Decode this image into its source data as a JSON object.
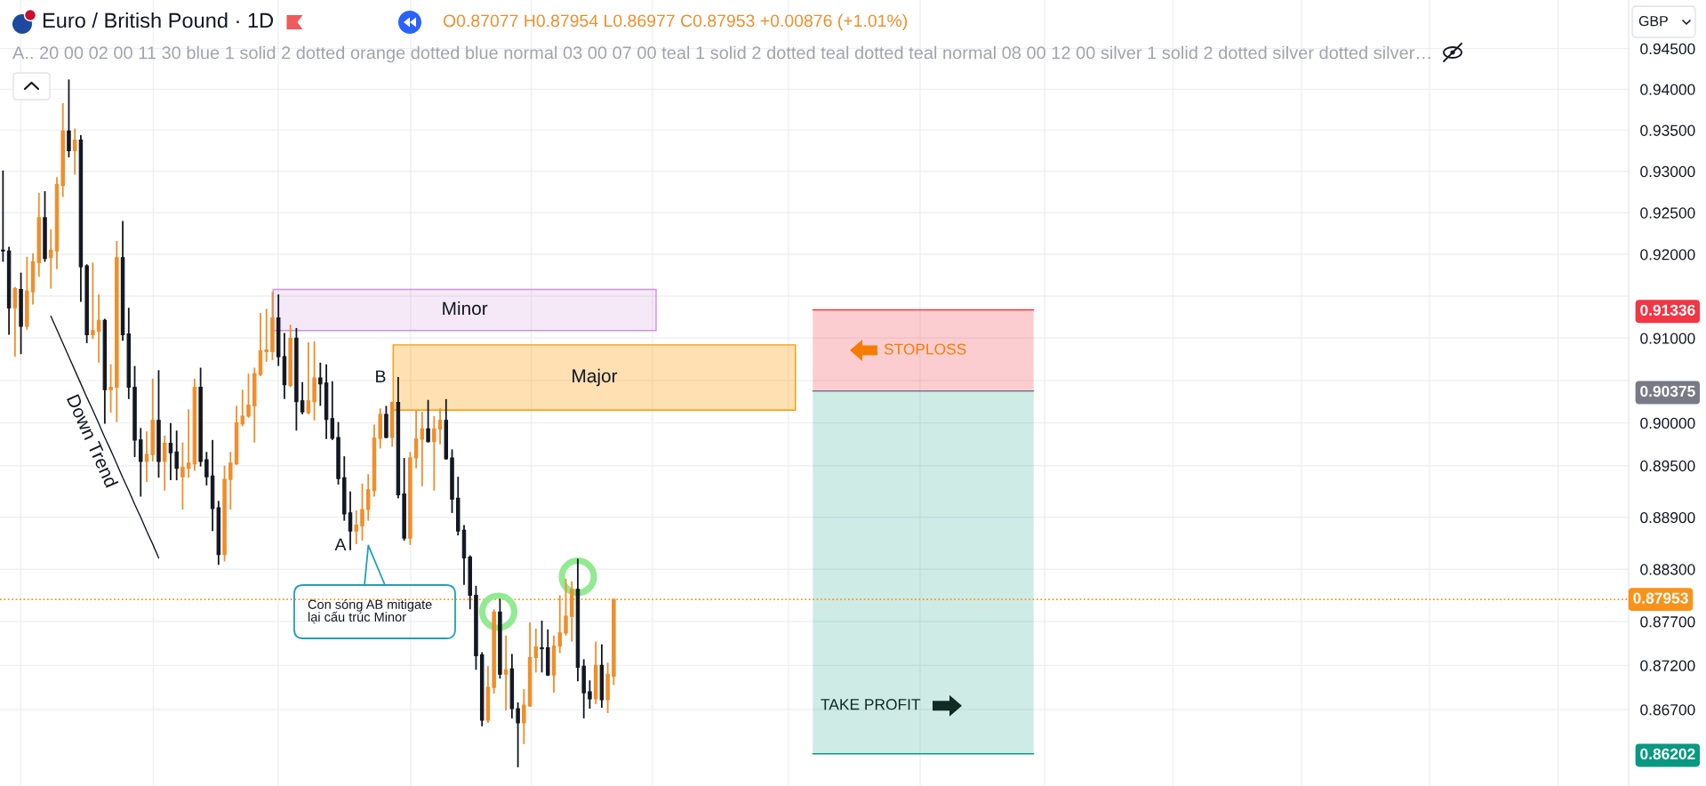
{
  "chart_data": {
    "type": "candlestick",
    "title": "Euro / British Pound · 1D",
    "subtitle": "A.. 20 00 02 00 11 30 blue 1 solid 2 dotted orange dotted blue normal 03 00 07 00 teal 1 solid 2 dotted teal dotted teal normal 08 00 12 00 silver 1 solid 2 dotted silver dotted silver…",
    "categories": [
      null,
      null,
      null,
      null,
      null,
      null,
      null,
      null,
      null,
      null,
      null,
      null,
      null,
      null,
      null,
      null,
      null,
      null,
      null,
      null,
      null,
      null,
      null,
      null,
      null,
      null,
      null,
      null,
      null,
      null,
      null,
      null,
      null,
      null,
      null,
      null,
      null,
      null,
      null,
      null,
      null,
      null,
      null,
      null,
      null,
      null,
      null,
      null,
      null,
      null,
      null,
      null,
      null,
      null,
      null,
      null,
      null,
      null,
      null,
      null,
      null,
      null,
      null,
      null,
      null,
      null,
      null,
      null,
      null,
      null,
      null,
      null,
      null,
      null,
      null,
      null,
      null,
      null,
      null,
      null,
      null,
      null,
      null,
      null,
      null,
      null,
      null,
      null,
      null,
      null,
      null,
      null,
      null,
      null,
      null,
      null,
      null,
      null,
      null,
      null,
      null,
      null,
      null,
      null,
      null,
      null,
      null,
      null,
      null,
      null,
      null,
      null,
      null,
      null,
      null,
      null,
      null,
      null,
      null,
      null,
      null,
      null,
      null,
      null,
      null,
      null,
      null,
      null,
      null,
      null,
      null,
      null,
      null,
      null,
      null,
      null,
      null,
      null,
      null,
      null,
      null,
      null,
      null,
      null,
      null,
      null,
      null,
      null,
      null,
      null,
      null,
      null,
      null,
      null,
      null,
      null,
      null,
      null,
      null,
      null,
      null,
      null,
      null,
      null,
      null,
      null,
      null,
      null,
      null,
      null,
      null,
      null,
      null,
      null,
      null,
      null,
      null,
      null,
      null,
      null,
      null,
      null,
      null,
      null,
      null,
      null,
      null,
      null,
      null,
      null,
      null,
      null,
      null,
      null,
      null,
      null,
      null,
      null,
      null,
      null,
      null,
      null,
      null,
      null,
      null,
      null,
      null,
      null,
      null,
      null,
      null,
      null,
      null,
      null,
      null,
      null,
      null,
      null,
      null,
      null,
      null,
      null,
      null,
      null,
      null,
      null,
      null,
      null,
      null,
      null,
      null,
      null,
      null,
      null,
      null,
      null,
      null,
      null,
      null,
      null,
      null,
      null,
      null,
      null,
      null,
      null,
      null,
      null,
      null,
      null,
      null,
      null,
      null,
      null,
      null,
      null,
      null,
      null,
      null,
      null,
      null,
      null,
      null,
      null,
      null,
      null,
      null,
      null,
      null,
      null,
      null,
      null
    ],
    "ohlc": [
      [
        0.9205,
        0.9301,
        0.9191,
        0.9204
      ],
      [
        0.9204,
        0.9209,
        0.9104,
        0.9136
      ],
      [
        0.9136,
        0.9161,
        0.9078,
        0.9159
      ],
      [
        0.9158,
        0.9178,
        0.9081,
        0.9114
      ],
      [
        0.9114,
        0.9197,
        0.911,
        0.9156
      ],
      [
        0.9155,
        0.9201,
        0.914,
        0.9191
      ],
      [
        0.919,
        0.9274,
        0.9173,
        0.9244
      ],
      [
        0.9244,
        0.9276,
        0.9191,
        0.9195
      ],
      [
        0.9196,
        0.923,
        0.9159,
        0.9205
      ],
      [
        0.9204,
        0.9293,
        0.9182,
        0.9284
      ],
      [
        0.9283,
        0.9383,
        0.9269,
        0.9349
      ],
      [
        0.9349,
        0.9412,
        0.9317,
        0.9325
      ],
      [
        0.9325,
        0.9352,
        0.9296,
        0.9338
      ],
      [
        0.9338,
        0.9344,
        0.9143,
        0.9185
      ],
      [
        0.9186,
        0.9188,
        0.9094,
        0.9104
      ],
      [
        0.9104,
        0.919,
        0.9099,
        0.9109
      ],
      [
        0.9108,
        0.9152,
        0.9071,
        0.9121
      ],
      [
        0.9121,
        0.9123,
        0.8999,
        0.9039
      ],
      [
        0.9039,
        0.9069,
        0.9012,
        0.9042
      ],
      [
        0.9042,
        0.9216,
        0.9001,
        0.9196
      ],
      [
        0.9196,
        0.924,
        0.9097,
        0.9104
      ],
      [
        0.9105,
        0.9136,
        0.9028,
        0.9042
      ],
      [
        0.9042,
        0.9067,
        0.896,
        0.898
      ],
      [
        0.898,
        0.8994,
        0.8914,
        0.8955
      ],
      [
        0.8955,
        0.899,
        0.8931,
        0.8963
      ],
      [
        0.8963,
        0.9052,
        0.8955,
        0.9003
      ],
      [
        0.9003,
        0.9062,
        0.8936,
        0.8955
      ],
      [
        0.8955,
        0.8985,
        0.8921,
        0.8976
      ],
      [
        0.8976,
        0.9,
        0.8933,
        0.8965
      ],
      [
        0.8966,
        0.8991,
        0.8933,
        0.8947
      ],
      [
        0.8937,
        0.8977,
        0.8899,
        0.8948
      ],
      [
        0.8947,
        0.9016,
        0.8936,
        0.8953
      ],
      [
        0.8952,
        0.9052,
        0.8944,
        0.9042
      ],
      [
        0.9042,
        0.9065,
        0.8949,
        0.8955
      ],
      [
        0.8957,
        0.8966,
        0.8927,
        0.8937
      ],
      [
        0.8938,
        0.898,
        0.8874,
        0.89
      ],
      [
        0.8901,
        0.8909,
        0.8835,
        0.8847
      ],
      [
        0.8847,
        0.895,
        0.8839,
        0.8934
      ],
      [
        0.8934,
        0.8966,
        0.8899,
        0.8953
      ],
      [
        0.8952,
        0.902,
        0.8951,
        0.9
      ],
      [
        0.8999,
        0.9039,
        0.8996,
        0.9008
      ],
      [
        0.9008,
        0.9058,
        0.9006,
        0.9021
      ],
      [
        0.902,
        0.9065,
        0.8977,
        0.9058
      ],
      [
        0.9057,
        0.913,
        0.9055,
        0.9085
      ],
      [
        0.9084,
        0.9135,
        0.9072,
        0.9086
      ],
      [
        0.9084,
        0.9155,
        0.9074,
        0.9124
      ],
      [
        0.9124,
        0.9152,
        0.9067,
        0.9078
      ],
      [
        0.9078,
        0.9106,
        0.9028,
        0.9045
      ],
      [
        0.9044,
        0.9116,
        0.9042,
        0.91
      ],
      [
        0.91,
        0.9112,
        0.8991,
        0.9025
      ],
      [
        0.9026,
        0.9048,
        0.901,
        0.9013
      ],
      [
        0.9012,
        0.9095,
        0.901,
        0.9026
      ],
      [
        0.9025,
        0.9096,
        0.9003,
        0.9053
      ],
      [
        0.9053,
        0.9071,
        0.902,
        0.9046
      ],
      [
        0.9047,
        0.9069,
        0.8981,
        0.9004
      ],
      [
        0.9005,
        0.9049,
        0.898,
        0.8982
      ],
      [
        0.8983,
        0.9001,
        0.8928,
        0.8935
      ],
      [
        0.8936,
        0.8961,
        0.8886,
        0.8894
      ],
      [
        0.8895,
        0.892,
        0.8852,
        0.8874
      ],
      [
        0.8874,
        0.8898,
        0.8859,
        0.8881
      ],
      [
        0.888,
        0.8929,
        0.8863,
        0.8899
      ],
      [
        0.8899,
        0.894,
        0.8886,
        0.8922
      ],
      [
        0.8921,
        0.8998,
        0.8914,
        0.8982
      ],
      [
        0.8982,
        0.9017,
        0.897,
        0.901
      ],
      [
        0.901,
        0.902,
        0.8982,
        0.8983
      ],
      [
        0.8983,
        0.9025,
        0.8972,
        0.9024
      ],
      [
        0.9024,
        0.9054,
        0.8912,
        0.8916
      ],
      [
        0.8917,
        0.8959,
        0.8863,
        0.8866
      ],
      [
        0.8866,
        0.8966,
        0.8858,
        0.8959
      ],
      [
        0.8959,
        0.9015,
        0.8947,
        0.8981
      ],
      [
        0.8981,
        0.9013,
        0.8926,
        0.8993
      ],
      [
        0.8993,
        0.9027,
        0.8977,
        0.8978
      ],
      [
        0.8978,
        0.9008,
        0.8921,
        0.8993
      ],
      [
        0.8993,
        0.9017,
        0.8975,
        0.9003
      ],
      [
        0.9003,
        0.9028,
        0.8957,
        0.8958
      ],
      [
        0.8959,
        0.8969,
        0.8895,
        0.8911
      ],
      [
        0.8912,
        0.8937,
        0.8869,
        0.8874
      ],
      [
        0.8875,
        0.8881,
        0.8812,
        0.8843
      ],
      [
        0.8844,
        0.8846,
        0.8784,
        0.88
      ],
      [
        0.88,
        0.8811,
        0.8715,
        0.8731
      ],
      [
        0.8732,
        0.8735,
        0.8651,
        0.8658
      ],
      [
        0.8658,
        0.8719,
        0.8655,
        0.8695
      ],
      [
        0.8695,
        0.8784,
        0.8688,
        0.8781
      ],
      [
        0.8781,
        0.8796,
        0.8705,
        0.871
      ],
      [
        0.871,
        0.8754,
        0.8669,
        0.8715
      ],
      [
        0.8716,
        0.8733,
        0.866,
        0.8671
      ],
      [
        0.8671,
        0.8678,
        0.8605,
        0.8655
      ],
      [
        0.8655,
        0.8693,
        0.8631,
        0.8675
      ],
      [
        0.8674,
        0.8769,
        0.8673,
        0.8729
      ],
      [
        0.8729,
        0.8762,
        0.8712,
        0.8741
      ],
      [
        0.874,
        0.8771,
        0.8712,
        0.8739
      ],
      [
        0.874,
        0.8761,
        0.8708,
        0.8709
      ],
      [
        0.8709,
        0.8754,
        0.8689,
        0.8742
      ],
      [
        0.8742,
        0.88,
        0.8734,
        0.8757
      ],
      [
        0.8757,
        0.8819,
        0.8754,
        0.8776
      ],
      [
        0.8776,
        0.8816,
        0.8747,
        0.8807
      ],
      [
        0.8807,
        0.8842,
        0.8702,
        0.8718
      ],
      [
        0.8719,
        0.8727,
        0.866,
        0.8689
      ],
      [
        0.869,
        0.8703,
        0.8671,
        0.8682
      ],
      [
        0.8682,
        0.8747,
        0.8676,
        0.872
      ],
      [
        0.872,
        0.8744,
        0.8672,
        0.8681
      ],
      [
        0.8681,
        0.8723,
        0.8666,
        0.871
      ],
      [
        0.87077,
        0.87954,
        0.86977,
        0.87953
      ],
      null,
      null,
      null,
      null,
      null,
      null,
      null,
      null,
      null,
      null,
      null,
      null,
      null,
      null,
      null,
      null,
      null,
      null,
      null,
      null,
      null,
      null,
      null,
      null,
      null,
      null,
      null,
      null,
      null,
      null,
      null,
      null,
      null,
      null,
      null,
      null,
      null,
      null,
      null,
      null,
      null,
      null,
      null,
      null,
      null,
      null,
      null,
      null,
      null,
      null,
      null,
      null,
      null,
      null,
      null,
      null,
      null,
      null,
      null,
      null,
      null,
      null,
      null,
      null,
      null,
      null,
      null,
      null,
      null,
      null,
      null,
      null,
      null,
      null,
      null,
      null,
      null,
      null,
      null,
      null,
      null,
      null,
      null,
      null,
      null,
      null,
      null,
      null,
      null,
      null,
      null,
      null,
      null,
      null,
      null,
      null,
      null,
      null,
      null,
      null,
      null,
      null,
      null,
      null,
      null,
      null,
      null,
      null,
      null,
      null,
      null,
      null,
      null,
      null,
      null,
      null,
      null,
      null,
      null,
      null,
      null,
      null,
      null,
      null,
      null,
      null,
      null,
      null,
      null,
      null,
      null,
      null,
      null,
      null,
      null,
      null,
      null,
      null,
      null,
      null,
      null,
      null,
      null,
      null,
      null,
      null,
      null,
      null,
      null,
      null,
      null,
      null,
      null,
      null,
      null,
      null,
      null,
      null,
      null,
      null,
      null,
      null,
      null,
      null,
      null,
      null,
      null,
      null,
      null
    ],
    "colors": [
      "#131722",
      "#131722",
      "#ef8e2c",
      "#131722",
      "#ef8e2c",
      "#ef8e2c",
      "#ef8e2c",
      "#131722",
      "#ef8e2c",
      "#ef8e2c",
      "#ef8e2c",
      "#131722",
      "#ef8e2c",
      "#131722",
      "#131722",
      "#ef8e2c",
      "#ef8e2c",
      "#131722",
      "#ef8e2c",
      "#ef8e2c",
      "#131722",
      "#131722",
      "#131722",
      "#131722",
      "#ef8e2c",
      "#ef8e2c",
      "#131722",
      "#ef8e2c",
      "#131722",
      "#131722",
      "#ef8e2c",
      "#ef8e2c",
      "#ef8e2c",
      "#131722",
      "#131722",
      "#131722",
      "#131722",
      "#ef8e2c",
      "#ef8e2c",
      "#ef8e2c",
      "#ef8e2c",
      "#ef8e2c",
      "#ef8e2c",
      "#ef8e2c",
      "#ef8e2c",
      "#ef8e2c",
      "#131722",
      "#131722",
      "#ef8e2c",
      "#131722",
      "#131722",
      "#ef8e2c",
      "#ef8e2c",
      "#131722",
      "#131722",
      "#131722",
      "#131722",
      "#131722",
      "#131722",
      "#ef8e2c",
      "#ef8e2c",
      "#ef8e2c",
      "#ef8e2c",
      "#ef8e2c",
      "#131722",
      "#ef8e2c",
      "#131722",
      "#131722",
      "#ef8e2c",
      "#ef8e2c",
      "#ef8e2c",
      "#131722",
      "#ef8e2c",
      "#ef8e2c",
      "#131722",
      "#131722",
      "#131722",
      "#131722",
      "#131722",
      "#131722",
      "#131722",
      "#ef8e2c",
      "#ef8e2c",
      "#131722",
      "#ef8e2c",
      "#131722",
      "#131722",
      "#ef8e2c",
      "#ef8e2c",
      "#ef8e2c",
      "#131722",
      "#131722",
      "#ef8e2c",
      "#ef8e2c",
      "#ef8e2c",
      "#ef8e2c",
      "#131722",
      "#131722",
      "#131722",
      "#ef8e2c",
      "#131722",
      "#ef8e2c",
      "#ef8e2c",
      null,
      null,
      null,
      null,
      null,
      null,
      null,
      null,
      null,
      null,
      null,
      null,
      null,
      null,
      null,
      null,
      null,
      null,
      null,
      null,
      null,
      null,
      null,
      null,
      null,
      null,
      null,
      null,
      null,
      null,
      null,
      null,
      null,
      null,
      null,
      null,
      null,
      null,
      null,
      null,
      null,
      null,
      null,
      null,
      null,
      null,
      null,
      null,
      null,
      null,
      null,
      null,
      null,
      null,
      null,
      null,
      null,
      null,
      null,
      null,
      null,
      null,
      null,
      null,
      null,
      null,
      null,
      null,
      null,
      null,
      null,
      null,
      null,
      null,
      null,
      null,
      null,
      null,
      null,
      null,
      null,
      null,
      null,
      null,
      null,
      null,
      null,
      null,
      null,
      null,
      null,
      null,
      null,
      null,
      null,
      null,
      null,
      null,
      null,
      null,
      null,
      null,
      null,
      null,
      null,
      null,
      null,
      null,
      null,
      null,
      null,
      null,
      null,
      null,
      null,
      null,
      null,
      null,
      null,
      null,
      null,
      null,
      null,
      null,
      null,
      null,
      null,
      null,
      null,
      null,
      null,
      null,
      null,
      null,
      null,
      null,
      null,
      null,
      null,
      null,
      null,
      null,
      null,
      null,
      null,
      null,
      null,
      null,
      null,
      null,
      null,
      null,
      null,
      null,
      null,
      null,
      null,
      null,
      null,
      null,
      null,
      null,
      null,
      null,
      null,
      null,
      null,
      null,
      null
    ],
    "series": [
      {
        "type": "line",
        "name": "Down Trend",
        "color": "#131722",
        "values": [
          null,
          null,
          null,
          null,
          null,
          null,
          null,
          null,
          0.9126,
          0.911,
          0.9094,
          0.9078,
          0.9062,
          0.9046,
          0.903,
          0.9015,
          0.8999,
          0.8983,
          0.8968,
          0.8952,
          0.8936,
          0.8921,
          0.8905,
          0.889,
          0.8874,
          0.8859,
          0.8843,
          null,
          null,
          null,
          null,
          null,
          null,
          null,
          null,
          null,
          null,
          null,
          null,
          null,
          null,
          null,
          null,
          null,
          null,
          null,
          null,
          null,
          null,
          null,
          null,
          null,
          null,
          null,
          null,
          null,
          null,
          null,
          null,
          null,
          null,
          null,
          null,
          null,
          null,
          null,
          null,
          null,
          null,
          null,
          null,
          null,
          null,
          null,
          null,
          null,
          null,
          null,
          null,
          null,
          null,
          null,
          null,
          null,
          null,
          null,
          null,
          null,
          null,
          null,
          null,
          null,
          null,
          null,
          null,
          null,
          null,
          null,
          null,
          null,
          null,
          null,
          null,
          null,
          null,
          null,
          null,
          null,
          null,
          null,
          null,
          null,
          null,
          null,
          null,
          null,
          null,
          null,
          null,
          null,
          null,
          null,
          null,
          null,
          null,
          null,
          null,
          null,
          null,
          null,
          null,
          null,
          null,
          null,
          null,
          null,
          null,
          null,
          null,
          null,
          null,
          null,
          null,
          null,
          null,
          null,
          null,
          null,
          null,
          null,
          null,
          null,
          null,
          null,
          null,
          null,
          null,
          null,
          null,
          null,
          null,
          null,
          null,
          null,
          null,
          null,
          null,
          null,
          null,
          null,
          null,
          null,
          null,
          null,
          null,
          null,
          null,
          null,
          null,
          null,
          null,
          null,
          null,
          null,
          null,
          null,
          null,
          null,
          null,
          null,
          null,
          null,
          null,
          null,
          null,
          null,
          null,
          null,
          null,
          null,
          null,
          null,
          null,
          null,
          null,
          null,
          null,
          null,
          null,
          null,
          null,
          null,
          null,
          null,
          null,
          null,
          null,
          null,
          null,
          null,
          null,
          null,
          null,
          null,
          null,
          null,
          null,
          null,
          null,
          null,
          null,
          null,
          null,
          null,
          null,
          null,
          null,
          null,
          null,
          null,
          null,
          null,
          null,
          null,
          null,
          null,
          null,
          null,
          null,
          null,
          null,
          null,
          null,
          null,
          null,
          null,
          null,
          null,
          null,
          null,
          null,
          null,
          null,
          null,
          null,
          null,
          null,
          null,
          null,
          null,
          null,
          null
        ]
      }
    ],
    "log": true,
    "ylim": [
      0.8584,
      0.951
    ],
    "yticks": [
      {
        "value": 0.945,
        "label": "0.94500"
      },
      {
        "value": 0.94,
        "label": "0.94000"
      },
      {
        "value": 0.935,
        "label": "0.93500"
      },
      {
        "value": 0.93,
        "label": "0.93000"
      },
      {
        "value": 0.925,
        "label": "0.92500"
      },
      {
        "value": 0.92,
        "label": "0.92000"
      },
      {
        "value": 0.915,
        "label": null
      },
      {
        "value": 0.91336,
        "label": "0.91336"
      },
      {
        "value": 0.91,
        "label": "0.91000"
      },
      {
        "value": 0.905,
        "label": null
      },
      {
        "value": 0.90375,
        "label": "0.90375"
      },
      {
        "value": 0.9,
        "label": "0.90000"
      },
      {
        "value": 0.895,
        "label": "0.89500"
      },
      {
        "value": 0.889,
        "label": "0.88900"
      },
      {
        "value": 0.883,
        "label": "0.88300"
      },
      {
        "value": 0.877,
        "label": "0.87700"
      },
      {
        "value": 0.872,
        "label": "0.87200"
      },
      {
        "value": 0.867,
        "label": "0.86700"
      },
      {
        "value": 0.86202,
        "label": "0.86202"
      }
    ],
    "grid": true,
    "tick_labels": "y",
    "ref_lines": [
      {
        "axis": "y",
        "value": 0.91336,
        "color": "#f23645"
      },
      {
        "axis": "y",
        "value": 0.90375,
        "color": "#787b86"
      },
      {
        "axis": "y",
        "value": 0.87953,
        "label": "0.87953",
        "color": "#f7931a",
        "line_style": "dotted"
      },
      {
        "axis": "y",
        "value": 0.86202,
        "color": "#089981"
      }
    ],
    "bands": [
      {
        "axis": "y",
        "from": 0.9109,
        "to": 0.9158,
        "label": "Minor",
        "color": "#ce93d8"
      },
      {
        "axis": "y",
        "from": 0.9015,
        "to": 0.9092,
        "label": "Major",
        "color": "#ff9800"
      },
      {
        "axis": "y",
        "from": 0.90375,
        "to": 0.91336,
        "label": "STOPLOSS",
        "color": "#f23645"
      },
      {
        "axis": "y",
        "from": 0.86202,
        "to": 0.90375,
        "label": "TAKE PROFIT",
        "color": "#089981"
      }
    ],
    "annotations": [
      "O0.87077 H0.87954 L0.86977 C0.87953 +0.00876 (+1.01%)",
      "GBP",
      "B",
      "A",
      "Con sóng AB mitigate\nlại cấu trúc Minor"
    ]
  }
}
